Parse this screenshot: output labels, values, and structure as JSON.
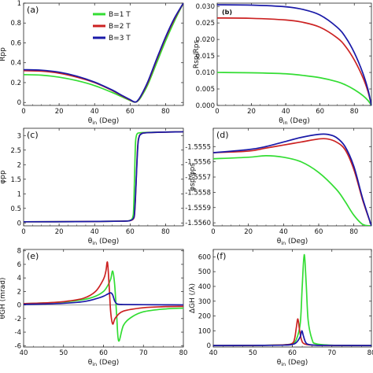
{
  "colors": {
    "B1": "#33dd33",
    "B2": "#cc2222",
    "B3": "#1a1aa8"
  },
  "legend": [
    {
      "label": "B=1 T",
      "color": "#33dd33"
    },
    {
      "label": "B=2 T",
      "color": "#cc2222"
    },
    {
      "label": "B=3 T",
      "color": "#1a1aa8"
    }
  ],
  "chart_data": [
    {
      "type": "line",
      "tag": "(a)",
      "xlabel": "θin (Deg)",
      "ylabel": "Rpp",
      "xlim": [
        0,
        90
      ],
      "ylim": [
        -0.03,
        1.0
      ],
      "xticks": [
        0,
        20,
        40,
        60,
        80
      ],
      "yticks": [
        0.0,
        0.2,
        0.4,
        0.6,
        0.8,
        1.0
      ],
      "series": [
        {
          "name": "B=1 T",
          "x": [
            0,
            10,
            20,
            30,
            40,
            50,
            55,
            60,
            62,
            63,
            64,
            66,
            70,
            75,
            80,
            85,
            90
          ],
          "y": [
            0.28,
            0.275,
            0.255,
            0.22,
            0.17,
            0.1,
            0.06,
            0.02,
            0.005,
            0.003,
            0.01,
            0.05,
            0.18,
            0.4,
            0.62,
            0.82,
            1.0
          ]
        },
        {
          "name": "B=2 T",
          "x": [
            0,
            10,
            20,
            30,
            40,
            50,
            55,
            60,
            62,
            63,
            64,
            66,
            70,
            75,
            80,
            85,
            90
          ],
          "y": [
            0.32,
            0.315,
            0.295,
            0.255,
            0.2,
            0.12,
            0.07,
            0.025,
            0.007,
            0.004,
            0.012,
            0.06,
            0.2,
            0.43,
            0.65,
            0.84,
            1.0
          ]
        },
        {
          "name": "B=3 T",
          "x": [
            0,
            10,
            20,
            30,
            40,
            50,
            55,
            60,
            62,
            63,
            64,
            66,
            70,
            75,
            80,
            85,
            90
          ],
          "y": [
            0.33,
            0.325,
            0.305,
            0.265,
            0.205,
            0.125,
            0.075,
            0.028,
            0.008,
            0.005,
            0.014,
            0.065,
            0.21,
            0.44,
            0.66,
            0.85,
            1.0
          ]
        }
      ]
    },
    {
      "type": "line",
      "tag": "(b)",
      "xlabel": "θin (Deg)",
      "ylabel": "Rsp/Rps",
      "xlim": [
        0,
        90
      ],
      "ylim": [
        0,
        0.031
      ],
      "xticks": [
        0,
        20,
        40,
        60,
        80
      ],
      "yticks": [
        0.0,
        0.005,
        0.01,
        0.015,
        0.02,
        0.025,
        0.03
      ],
      "ytick_labels": [
        "0.000",
        "0.005",
        "0.010",
        "0.015",
        "0.020",
        "0.025",
        "0.030"
      ],
      "series": [
        {
          "name": "B=1 T",
          "x": [
            0,
            20,
            40,
            50,
            60,
            70,
            75,
            80,
            85,
            88,
            90
          ],
          "y": [
            0.01,
            0.0099,
            0.0096,
            0.0091,
            0.0084,
            0.0072,
            0.0062,
            0.0048,
            0.003,
            0.0015,
            0.0
          ]
        },
        {
          "name": "B=2 T",
          "x": [
            0,
            20,
            40,
            50,
            60,
            70,
            75,
            80,
            85,
            88,
            90
          ],
          "y": [
            0.0265,
            0.0264,
            0.0259,
            0.0252,
            0.0237,
            0.0205,
            0.0178,
            0.0138,
            0.0085,
            0.0042,
            0.0
          ]
        },
        {
          "name": "B=3 T",
          "x": [
            0,
            20,
            40,
            50,
            60,
            70,
            75,
            80,
            85,
            88,
            90
          ],
          "y": [
            0.0305,
            0.0304,
            0.0299,
            0.0291,
            0.0274,
            0.0237,
            0.0206,
            0.016,
            0.0098,
            0.0048,
            0.0
          ]
        }
      ]
    },
    {
      "type": "line",
      "tag": "(c)",
      "xlabel": "θin (Deg)",
      "ylabel": "φpp",
      "xlim": [
        0,
        90
      ],
      "ylim": [
        -0.1,
        3.25
      ],
      "xticks": [
        0,
        20,
        40,
        60,
        80
      ],
      "yticks": [
        0.0,
        0.5,
        1.0,
        1.5,
        2.0,
        2.5,
        3.0
      ],
      "series": [
        {
          "name": "B=1 T",
          "x": [
            0,
            30,
            55,
            60,
            61.5,
            62,
            62.5,
            63,
            63.5,
            64,
            65,
            70,
            90
          ],
          "y": [
            0.04,
            0.045,
            0.06,
            0.09,
            0.2,
            0.5,
            1.57,
            2.7,
            2.98,
            3.06,
            3.09,
            3.11,
            3.13
          ]
        },
        {
          "name": "B=2 T",
          "x": [
            0,
            30,
            55,
            60,
            62,
            62.5,
            63,
            63.5,
            64,
            64.5,
            65,
            66,
            70,
            90
          ],
          "y": [
            0.04,
            0.045,
            0.06,
            0.08,
            0.15,
            0.3,
            0.8,
            1.57,
            2.35,
            2.8,
            2.95,
            3.05,
            3.1,
            3.13
          ]
        },
        {
          "name": "B=3 T",
          "x": [
            0,
            30,
            55,
            60,
            62,
            62.5,
            63,
            63.5,
            64,
            64.5,
            65,
            66,
            70,
            90
          ],
          "y": [
            0.04,
            0.045,
            0.06,
            0.08,
            0.17,
            0.35,
            0.9,
            1.57,
            2.25,
            2.75,
            2.93,
            3.04,
            3.1,
            3.13
          ]
        }
      ]
    },
    {
      "type": "line",
      "tag": "(d)",
      "xlabel": "θin (Deg)",
      "ylabel": "φsp/φps",
      "xlim": [
        0,
        90
      ],
      "ylim": [
        -1.55602,
        -1.55538
      ],
      "xticks": [
        0,
        20,
        40,
        60,
        80
      ],
      "yticks": [
        -1.5555,
        -1.5556,
        -1.5557,
        -1.5558,
        -1.5559,
        -1.556
      ],
      "ytick_labels": [
        "-1.5555",
        "-1.5556",
        "-1.5557",
        "-1.5558",
        "-1.5559",
        "-1.5560"
      ],
      "series": [
        {
          "name": "B=1 T",
          "x": [
            0,
            20,
            30,
            40,
            50,
            60,
            70,
            75,
            80,
            85,
            90
          ],
          "y": [
            -1.55558,
            -1.55557,
            -1.55556,
            -1.55557,
            -1.5556,
            -1.55567,
            -1.55578,
            -1.55586,
            -1.55595,
            -1.55601,
            -1.55602
          ]
        },
        {
          "name": "B=2 T",
          "x": [
            0,
            20,
            30,
            40,
            50,
            60,
            65,
            70,
            75,
            80,
            85,
            90
          ],
          "y": [
            -1.55554,
            -1.55553,
            -1.55551,
            -1.55549,
            -1.55547,
            -1.55545,
            -1.55545,
            -1.55547,
            -1.55552,
            -1.55565,
            -1.55585,
            -1.55602
          ]
        },
        {
          "name": "B=3 T",
          "x": [
            0,
            20,
            30,
            40,
            50,
            60,
            65,
            70,
            75,
            80,
            85,
            90
          ],
          "y": [
            -1.55554,
            -1.55552,
            -1.5555,
            -1.55547,
            -1.55544,
            -1.55542,
            -1.55542,
            -1.55544,
            -1.5555,
            -1.55563,
            -1.55584,
            -1.55602
          ]
        }
      ]
    },
    {
      "type": "line",
      "tag": "(e)",
      "xlabel": "θin (Deg)",
      "ylabel": "θGH (mrad)",
      "xlim": [
        40,
        80
      ],
      "ylim": [
        -6.2,
        8.2
      ],
      "xticks": [
        40,
        50,
        60,
        70,
        80
      ],
      "yticks": [
        -6,
        -4,
        -2,
        0,
        2,
        4,
        6,
        8
      ],
      "series": [
        {
          "name": "B=1 T",
          "x": [
            40,
            45,
            50,
            55,
            58,
            60,
            61,
            61.8,
            62.3,
            62.8,
            63.3,
            63.8,
            65,
            67,
            70,
            75,
            80
          ],
          "y": [
            0.2,
            0.3,
            0.45,
            0.8,
            1.3,
            2.0,
            2.8,
            3.8,
            5.0,
            3.0,
            -1.5,
            -5.3,
            -3.0,
            -1.8,
            -1.0,
            -0.6,
            -0.45
          ]
        },
        {
          "name": "B=2 T",
          "x": [
            40,
            45,
            50,
            55,
            58,
            60,
            60.6,
            61.0,
            61.4,
            61.8,
            62.3,
            63,
            65,
            70,
            75,
            80
          ],
          "y": [
            0.2,
            0.3,
            0.5,
            1.0,
            2.0,
            3.8,
            5.0,
            6.3,
            3.0,
            -1.0,
            -2.8,
            -1.9,
            -0.9,
            -0.4,
            -0.25,
            -0.2
          ]
        },
        {
          "name": "B=3 T",
          "x": [
            40,
            45,
            50,
            55,
            58,
            60,
            61,
            61.8,
            62.3,
            62.8,
            63.3,
            64,
            65,
            70,
            75,
            80
          ],
          "y": [
            0.1,
            0.15,
            0.25,
            0.5,
            0.9,
            1.3,
            1.6,
            1.8,
            1.5,
            0.6,
            0.2,
            0.1,
            0.08,
            0.05,
            0.03,
            0.02
          ]
        }
      ]
    },
    {
      "type": "line",
      "tag": "(f)",
      "xlabel": "θin (Deg)",
      "ylabel": "ΔGH (/λ)",
      "xlim": [
        40,
        80
      ],
      "ylim": [
        -10,
        650
      ],
      "xticks": [
        40,
        50,
        60,
        70,
        80
      ],
      "yticks": [
        0,
        100,
        200,
        300,
        400,
        500,
        600
      ],
      "series": [
        {
          "name": "B=1 T",
          "x": [
            40,
            50,
            58,
            60,
            61,
            62,
            62.5,
            63,
            63.5,
            64,
            65,
            66,
            70,
            80
          ],
          "y": [
            0,
            1,
            5,
            15,
            40,
            150,
            400,
            615,
            420,
            170,
            40,
            12,
            2,
            0
          ]
        },
        {
          "name": "B=2 T",
          "x": [
            40,
            50,
            58,
            60,
            60.6,
            61,
            61.4,
            61.8,
            62.3,
            63,
            65,
            70,
            80
          ],
          "y": [
            0,
            1,
            5,
            15,
            50,
            120,
            180,
            110,
            40,
            12,
            3,
            1,
            0
          ]
        },
        {
          "name": "B=3 T",
          "x": [
            40,
            50,
            58,
            60,
            61,
            62,
            62.4,
            62.8,
            63.3,
            64,
            66,
            70,
            80
          ],
          "y": [
            0,
            1,
            3,
            8,
            20,
            60,
            100,
            65,
            25,
            8,
            2,
            1,
            0
          ]
        }
      ]
    }
  ]
}
